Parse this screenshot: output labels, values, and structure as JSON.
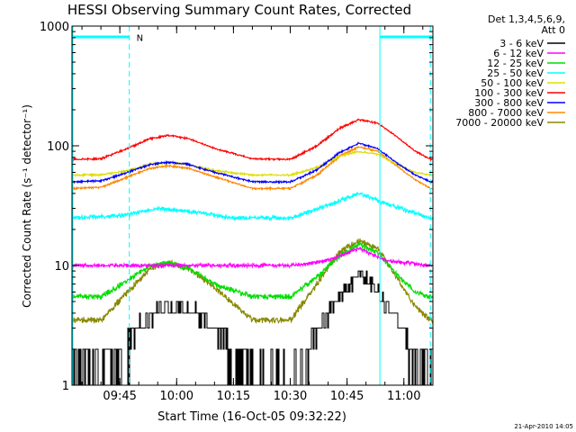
{
  "chart_data": {
    "type": "line",
    "title": "HESSI Observing Summary Count Rates, Corrected",
    "xlabel": "Start Time (16-Oct-05 09:32:22)",
    "ylabel": "Corrected Count Rate (s⁻¹ detector⁻¹)",
    "yscale": "log",
    "ylim": [
      1,
      1000
    ],
    "xlim": [
      "09:32:22",
      "11:07:40"
    ],
    "x_ticks": [
      "09:45",
      "10:00",
      "10:15",
      "10:30",
      "10:45",
      "11:00"
    ],
    "y_ticks": [
      "1",
      "10",
      "100",
      "1000"
    ],
    "legend_header": [
      "Det 1,3,4,5,6,9,",
      "Att 0"
    ],
    "legend_position": "right",
    "grid": false,
    "annotations": [
      {
        "text": "N",
        "x": "09:47:30",
        "y": 850
      }
    ],
    "night_bars": [
      [
        "09:32:22",
        "09:47:30"
      ],
      [
        "10:53:40",
        "11:07:40"
      ]
    ],
    "vlines_dashed": [
      "09:47:30",
      "11:07:00"
    ],
    "vlines_solid": [
      "10:53:40"
    ],
    "series": [
      {
        "name": "3 - 6 keV",
        "color": "#000000",
        "x": [
          "09:32",
          "09:40",
          "09:47",
          "09:52",
          "09:58",
          "10:04",
          "10:10",
          "10:20",
          "10:30",
          "10:37",
          "10:43",
          "10:48",
          "10:52",
          "10:57",
          "11:03",
          "11:07"
        ],
        "values": [
          1.6,
          1.6,
          2.4,
          3.8,
          4.5,
          4.3,
          3.0,
          1.6,
          1.4,
          2.8,
          5.5,
          8.5,
          7.0,
          4.0,
          2.0,
          1.6
        ]
      },
      {
        "name": "6 - 12 keV",
        "color": "#ff00ff",
        "x": [
          "09:32",
          "09:50",
          "10:10",
          "10:30",
          "10:40",
          "10:48",
          "10:55",
          "11:07"
        ],
        "values": [
          10,
          10,
          10,
          10,
          11,
          14,
          11,
          10
        ]
      },
      {
        "name": "12 - 25 keV",
        "color": "#00dd00",
        "x": [
          "09:32",
          "09:40",
          "09:47",
          "09:53",
          "09:58",
          "10:03",
          "10:10",
          "10:20",
          "10:30",
          "10:37",
          "10:43",
          "10:48",
          "10:53",
          "10:58",
          "11:03",
          "11:07"
        ],
        "values": [
          5.5,
          5.5,
          7.5,
          10,
          10.5,
          9.5,
          7.0,
          5.5,
          5.5,
          8.0,
          12,
          15,
          13,
          8.5,
          6.0,
          5.5
        ]
      },
      {
        "name": "25 - 50 keV",
        "color": "#00ffff",
        "x": [
          "09:32",
          "09:45",
          "09:55",
          "10:05",
          "10:15",
          "10:30",
          "10:40",
          "10:48",
          "10:55",
          "11:07"
        ],
        "values": [
          25,
          26,
          30,
          28,
          25,
          25,
          32,
          40,
          33,
          25
        ]
      },
      {
        "name": "50 - 100 keV",
        "color": "#dddd00",
        "x": [
          "09:32",
          "09:40",
          "09:47",
          "09:53",
          "09:58",
          "10:03",
          "10:10",
          "10:20",
          "10:30",
          "10:37",
          "10:43",
          "10:48",
          "10:53",
          "10:58",
          "11:03",
          "11:07"
        ],
        "values": [
          57,
          57,
          62,
          70,
          72,
          70,
          62,
          57,
          57,
          66,
          82,
          90,
          85,
          70,
          60,
          57
        ]
      },
      {
        "name": "100 - 300 keV",
        "color": "#ff0000",
        "x": [
          "09:32",
          "09:40",
          "09:47",
          "09:53",
          "09:58",
          "10:03",
          "10:10",
          "10:20",
          "10:30",
          "10:37",
          "10:43",
          "10:48",
          "10:53",
          "10:58",
          "11:03",
          "11:07"
        ],
        "values": [
          77,
          78,
          95,
          115,
          122,
          115,
          95,
          78,
          77,
          100,
          140,
          165,
          155,
          120,
          90,
          77
        ]
      },
      {
        "name": "300 - 800 keV",
        "color": "#0000ff",
        "x": [
          "09:32",
          "09:40",
          "09:47",
          "09:53",
          "09:58",
          "10:03",
          "10:10",
          "10:20",
          "10:30",
          "10:37",
          "10:43",
          "10:48",
          "10:53",
          "10:58",
          "11:03",
          "11:07"
        ],
        "values": [
          50,
          51,
          60,
          70,
          73,
          70,
          60,
          50,
          50,
          63,
          88,
          105,
          95,
          72,
          57,
          50
        ]
      },
      {
        "name": "800 - 7000 keV",
        "color": "#ff8800",
        "x": [
          "09:32",
          "09:40",
          "09:47",
          "09:53",
          "09:58",
          "10:03",
          "10:10",
          "10:20",
          "10:30",
          "10:37",
          "10:43",
          "10:48",
          "10:53",
          "10:58",
          "11:03",
          "11:07"
        ],
        "values": [
          44,
          45,
          55,
          65,
          68,
          65,
          55,
          44,
          44,
          57,
          82,
          98,
          90,
          68,
          52,
          44
        ]
      },
      {
        "name": "7000 - 20000 keV",
        "color": "#888800",
        "x": [
          "09:32",
          "09:40",
          "09:47",
          "09:53",
          "09:58",
          "10:03",
          "10:10",
          "10:20",
          "10:30",
          "10:37",
          "10:43",
          "10:48",
          "10:53",
          "10:58",
          "11:03",
          "11:07"
        ],
        "values": [
          3.5,
          3.5,
          6.0,
          9.5,
          10.5,
          9.5,
          6.5,
          3.5,
          3.5,
          7.0,
          13,
          16,
          14,
          8.0,
          4.5,
          3.5
        ]
      }
    ]
  },
  "footer": {
    "timestamp": "21-Apr-2010 14:05"
  }
}
